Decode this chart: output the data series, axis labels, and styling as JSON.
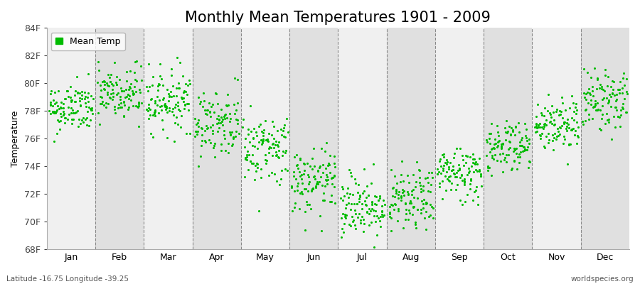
{
  "title": "Monthly Mean Temperatures 1901 - 2009",
  "ylabel": "Temperature",
  "months": [
    "Jan",
    "Feb",
    "Mar",
    "Apr",
    "May",
    "Jun",
    "Jul",
    "Aug",
    "Sep",
    "Oct",
    "Nov",
    "Dec"
  ],
  "ylim": [
    68,
    84
  ],
  "yticks": [
    68,
    70,
    72,
    74,
    76,
    78,
    80,
    82,
    84
  ],
  "ytick_labels": [
    "68F",
    "70F",
    "72F",
    "74F",
    "76F",
    "78F",
    "80F",
    "82F",
    "84F"
  ],
  "dot_color": "#00BB00",
  "background_color": "#FFFFFF",
  "plot_bg_color": "#F0F0F0",
  "alt_bg_color": "#E0E0E0",
  "title_fontsize": 15,
  "axis_label_fontsize": 9,
  "tick_fontsize": 9,
  "legend_label": "Mean Temp",
  "footer_left": "Latitude -16.75 Longitude -39.25",
  "footer_right": "worldspecies.org",
  "n_years": 109,
  "monthly_means": [
    78.2,
    79.2,
    78.8,
    77.2,
    75.3,
    72.8,
    71.2,
    71.5,
    73.5,
    75.5,
    77.0,
    78.8
  ],
  "monthly_stds": [
    0.9,
    1.1,
    1.1,
    1.2,
    1.3,
    1.2,
    1.2,
    1.1,
    1.0,
    1.0,
    1.0,
    1.1
  ],
  "seed": 42
}
